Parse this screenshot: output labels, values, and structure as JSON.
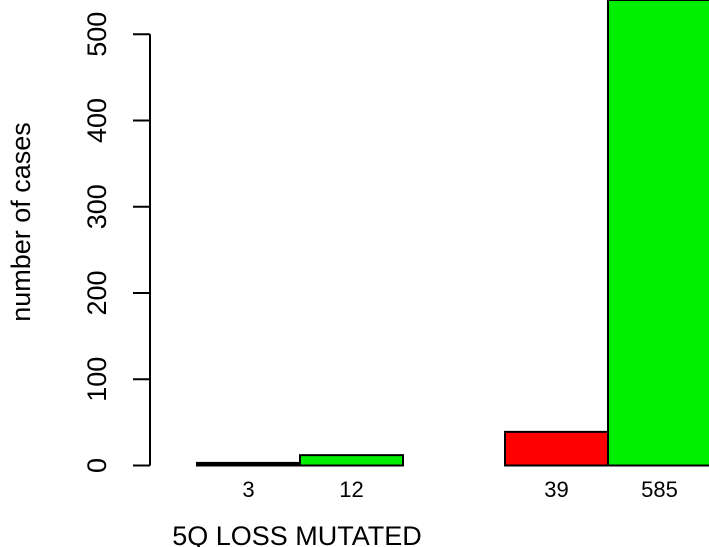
{
  "chart_data": {
    "type": "bar",
    "title": "",
    "xlabel": "5Q LOSS MUTATED",
    "ylabel": "number of cases",
    "ylim": [
      0,
      585
    ],
    "yticks": [
      0,
      100,
      200,
      300,
      400,
      500
    ],
    "grid": false,
    "legend": "none",
    "groups": [
      {
        "bars": [
          {
            "value": 3,
            "label": "3",
            "color": "#000000"
          },
          {
            "value": 12,
            "label": "12",
            "color": "#00ee00"
          }
        ]
      },
      {
        "bars": [
          {
            "value": 39,
            "label": "39",
            "color": "#ff0000"
          },
          {
            "value": 585,
            "label": "585",
            "color": "#00ee00"
          }
        ]
      }
    ]
  }
}
